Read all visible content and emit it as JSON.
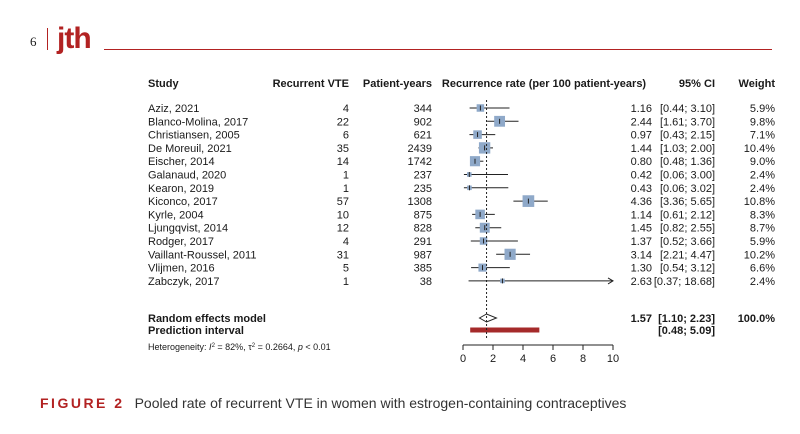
{
  "page": {
    "number": "6",
    "journal_logo": "jth"
  },
  "caption": {
    "figure_label": "FIGURE 2",
    "text": "Pooled rate of recurrent VTE in women with estrogen-containing contraceptives"
  },
  "chart_data": {
    "type": "forest",
    "headers": {
      "study": "Study",
      "events": "Recurrent VTE",
      "exposure": "Patient-years",
      "plot": "Recurrence rate (per 100 patient-years)",
      "ci": "95% CI",
      "weight": "Weight"
    },
    "studies": [
      {
        "study": "Aziz, 2021",
        "events": "4",
        "exposure": "344",
        "rate": 1.16,
        "lo": 0.44,
        "hi": 3.1,
        "rate_label": "1.16",
        "ci_label": "[0.44; 3.10]",
        "weight_label": "5.9%",
        "weight": 5.9
      },
      {
        "study": "Blanco-Molina, 2017",
        "events": "22",
        "exposure": "902",
        "rate": 2.44,
        "lo": 1.61,
        "hi": 3.7,
        "rate_label": "2.44",
        "ci_label": "[1.61; 3.70]",
        "weight_label": "9.8%",
        "weight": 9.8
      },
      {
        "study": "Christiansen, 2005",
        "events": "6",
        "exposure": "621",
        "rate": 0.97,
        "lo": 0.43,
        "hi": 2.15,
        "rate_label": "0.97",
        "ci_label": "[0.43; 2.15]",
        "weight_label": "7.1%",
        "weight": 7.1
      },
      {
        "study": "De Moreuil, 2021",
        "events": "35",
        "exposure": "2439",
        "rate": 1.44,
        "lo": 1.03,
        "hi": 2.0,
        "rate_label": "1.44",
        "ci_label": "[1.03; 2.00]",
        "weight_label": "10.4%",
        "weight": 10.4
      },
      {
        "study": "Eischer, 2014",
        "events": "14",
        "exposure": "1742",
        "rate": 0.8,
        "lo": 0.48,
        "hi": 1.36,
        "rate_label": "0.80",
        "ci_label": "[0.48; 1.36]",
        "weight_label": "9.0%",
        "weight": 9.0
      },
      {
        "study": "Galanaud, 2020",
        "events": "1",
        "exposure": "237",
        "rate": 0.42,
        "lo": 0.06,
        "hi": 3.0,
        "rate_label": "0.42",
        "ci_label": "[0.06; 3.00]",
        "weight_label": "2.4%",
        "weight": 2.4
      },
      {
        "study": "Kearon, 2019",
        "events": "1",
        "exposure": "235",
        "rate": 0.43,
        "lo": 0.06,
        "hi": 3.02,
        "rate_label": "0.43",
        "ci_label": "[0.06; 3.02]",
        "weight_label": "2.4%",
        "weight": 2.4
      },
      {
        "study": "Kiconco, 2017",
        "events": "57",
        "exposure": "1308",
        "rate": 4.36,
        "lo": 3.36,
        "hi": 5.65,
        "rate_label": "4.36",
        "ci_label": "[3.36; 5.65]",
        "weight_label": "10.8%",
        "weight": 10.8
      },
      {
        "study": "Kyrle, 2004",
        "events": "10",
        "exposure": "875",
        "rate": 1.14,
        "lo": 0.61,
        "hi": 2.12,
        "rate_label": "1.14",
        "ci_label": "[0.61; 2.12]",
        "weight_label": "8.3%",
        "weight": 8.3
      },
      {
        "study": "Ljungqvist, 2014",
        "events": "12",
        "exposure": "828",
        "rate": 1.45,
        "lo": 0.82,
        "hi": 2.55,
        "rate_label": "1.45",
        "ci_label": "[0.82; 2.55]",
        "weight_label": "8.7%",
        "weight": 8.7
      },
      {
        "study": "Rodger, 2017",
        "events": "4",
        "exposure": "291",
        "rate": 1.37,
        "lo": 0.52,
        "hi": 3.66,
        "rate_label": "1.37",
        "ci_label": "[0.52; 3.66]",
        "weight_label": "5.9%",
        "weight": 5.9
      },
      {
        "study": "Vaillant-Roussel, 2011",
        "events": "31",
        "exposure": "987",
        "rate": 3.14,
        "lo": 2.21,
        "hi": 4.47,
        "rate_label": "3.14",
        "ci_label": "[2.21; 4.47]",
        "weight_label": "10.2%",
        "weight": 10.2
      },
      {
        "study": "Vlijmen, 2016",
        "events": "5",
        "exposure": "385",
        "rate": 1.3,
        "lo": 0.54,
        "hi": 3.12,
        "rate_label": "1.30",
        "ci_label": "[0.54; 3.12]",
        "weight_label": "6.6%",
        "weight": 6.6
      },
      {
        "study": "Zabczyk, 2017",
        "events": "1",
        "exposure": "38",
        "rate": 2.63,
        "lo": 0.37,
        "hi": 18.68,
        "rate_label": "2.63",
        "ci_label": "[0.37; 18.68]",
        "weight_label": "2.4%",
        "weight": 2.4
      }
    ],
    "pooled": {
      "label": "Random effects model",
      "rate": 1.57,
      "lo": 1.1,
      "hi": 2.23,
      "rate_label": "1.57",
      "ci_label": "[1.10; 2.23]",
      "weight_label": "100.0%"
    },
    "prediction": {
      "label": "Prediction interval",
      "lo": 0.48,
      "hi": 5.09,
      "ci_label": "[0.48; 5.09]"
    },
    "heterogeneity": {
      "prefix": "Heterogeneity: ",
      "i2_label": "I",
      "i2_value": " = 82%, ",
      "tau_label": "τ",
      "tau_value": " = 0.2664, ",
      "p_label": "p",
      "p_value": " < 0.01"
    },
    "x_axis": {
      "min": 0,
      "max": 10,
      "ticks": [
        0,
        2,
        4,
        6,
        8,
        10
      ],
      "tick_labels": [
        "0",
        "2",
        "4",
        "6",
        "8",
        "10"
      ]
    },
    "colors": {
      "box": "#8fa9c9",
      "prediction": "#a52a2a",
      "diamond_fill": "#ffffff"
    }
  }
}
